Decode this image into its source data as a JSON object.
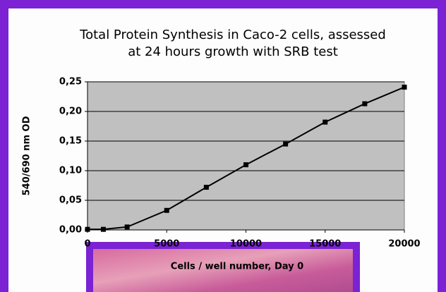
{
  "chart_data": {
    "type": "line",
    "title": [
      "Total Protein Synthesis in Caco-2 cells, assessed",
      "at 24 hours growth with SRB test"
    ],
    "x_label": "Cells / well number, Day 0",
    "y_label": "540/690 nm OD",
    "x": [
      0,
      1000,
      2500,
      5000,
      7500,
      10000,
      12500,
      15000,
      17500,
      20000
    ],
    "series": [
      {
        "color": "#000000",
        "values": [
          0.001,
          0.001,
          0.005,
          0.033,
          0.072,
          0.11,
          0.145,
          0.182,
          0.213,
          0.241
        ]
      }
    ],
    "xlim": [
      0,
      20000
    ],
    "xticks": [
      0,
      5000,
      10000,
      15000,
      20000
    ],
    "ylim": [
      0,
      0.25
    ],
    "yticks": [
      {
        "value": 0,
        "label": "0,00"
      },
      {
        "value": 0.05,
        "label": "0,05"
      },
      {
        "value": 0.1,
        "label": "0,10"
      },
      {
        "value": 0.15,
        "label": "0,15"
      },
      {
        "value": 0.2,
        "label": "0,20"
      },
      {
        "value": 0.25,
        "label": "0,25"
      }
    ],
    "grid": true,
    "plot_background": "#c0c0c0"
  }
}
